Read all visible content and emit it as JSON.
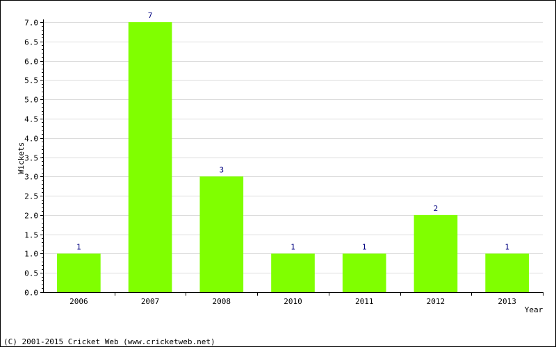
{
  "chart_data": {
    "type": "bar",
    "categories": [
      "2006",
      "2007",
      "2008",
      "2010",
      "2011",
      "2012",
      "2013"
    ],
    "values": [
      1,
      7,
      3,
      1,
      1,
      2,
      1
    ],
    "data_labels": [
      "1",
      "7",
      "3",
      "1",
      "1",
      "2",
      "1"
    ],
    "title": "",
    "xlabel": "Year",
    "ylabel": "Wickets",
    "ylim": [
      0,
      7
    ],
    "yticks": [
      "0.0",
      "0.5",
      "1.0",
      "1.5",
      "2.0",
      "2.5",
      "3.0",
      "3.5",
      "4.0",
      "4.5",
      "5.0",
      "5.5",
      "6.0",
      "6.5",
      "7.0"
    ],
    "grid": true,
    "bar_color": "#80ff00",
    "label_color": "#000080"
  },
  "footer": {
    "copyright": "(C) 2001-2015 Cricket Web (www.cricketweb.net)"
  }
}
